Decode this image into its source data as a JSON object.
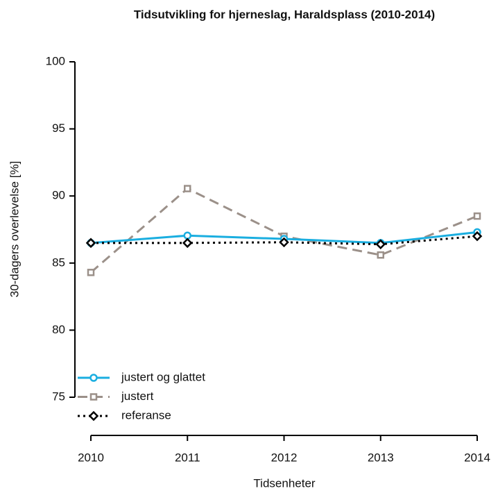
{
  "chart_data": {
    "type": "line",
    "title": "Tidsutvikling for hjerneslag, Haraldsplass (2010-2014)",
    "x_label": "Tidsenheter",
    "y_label": "30-dagers overlevelse [%]",
    "x": [
      2010,
      2011,
      2012,
      2013,
      2014
    ],
    "xlim": [
      2010,
      2014
    ],
    "xticks": [
      2010,
      2011,
      2012,
      2013,
      2014
    ],
    "ylim": [
      75,
      100
    ],
    "yticks": [
      75,
      80,
      85,
      90,
      95,
      100
    ],
    "legend": "bottom-left",
    "series": [
      {
        "name": "justert og glattet",
        "color": "#1aaee0",
        "marker": "circle",
        "line_style": "solid",
        "values": [
          86.5,
          87.05,
          86.8,
          86.5,
          87.3
        ]
      },
      {
        "name": "justert",
        "color": "#9b9089",
        "marker": "square",
        "line_style": "dashed",
        "values": [
          84.3,
          90.55,
          87.0,
          85.6,
          88.5
        ]
      },
      {
        "name": "referanse",
        "color": "#000000",
        "marker": "diamond",
        "line_style": "dotted",
        "values": [
          86.5,
          86.5,
          86.55,
          86.4,
          87.0
        ]
      }
    ]
  }
}
